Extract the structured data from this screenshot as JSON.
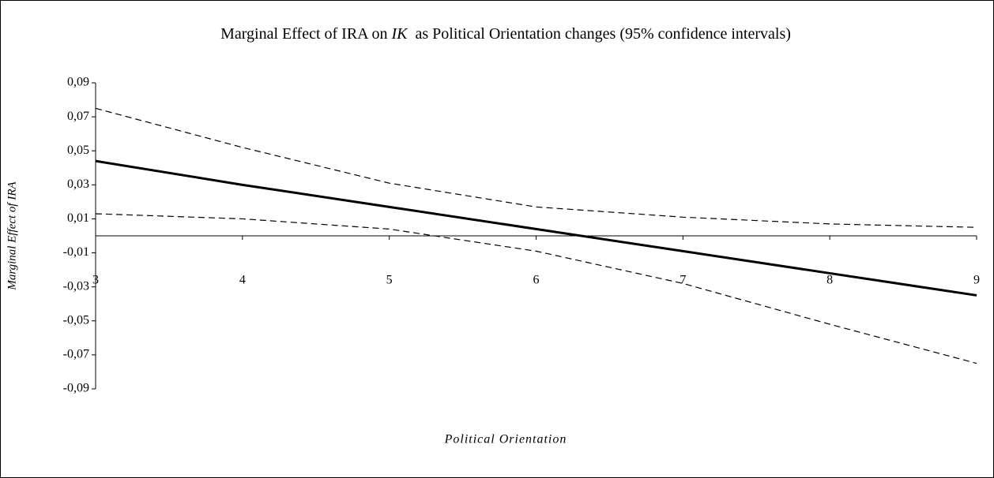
{
  "chart_data": {
    "type": "line",
    "title": [
      "Marginal Effect of IRA on ",
      "IK",
      "  as Political Orientation changes (95% confidence intervals)"
    ],
    "x_label": "Political Orientation",
    "y_label": "Marginal Effect of IRA",
    "x": [
      3,
      4,
      5,
      6,
      7,
      8,
      9
    ],
    "series": [
      {
        "color": "#000000",
        "style": "solid",
        "values": [
          0.044,
          0.03,
          0.017,
          0.004,
          -0.009,
          -0.022,
          -0.035
        ]
      },
      {
        "color": "#000000",
        "style": "dashed",
        "values": [
          0.075,
          0.052,
          0.031,
          0.017,
          0.011,
          0.007,
          0.005
        ]
      },
      {
        "color": "#000000",
        "style": "dashed",
        "values": [
          0.013,
          0.01,
          0.004,
          -0.009,
          -0.028,
          -0.052,
          -0.075
        ]
      }
    ],
    "xlim": [
      3,
      9
    ],
    "xticks": [
      3,
      4,
      5,
      6,
      7,
      8,
      9
    ],
    "ylim": [
      -0.09,
      0.09
    ],
    "yticks": [
      {
        "value": -0.09,
        "label": "-0,09"
      },
      {
        "value": -0.07,
        "label": "-0,07"
      },
      {
        "value": -0.05,
        "label": "-0,05"
      },
      {
        "value": -0.03,
        "label": "-0,03"
      },
      {
        "value": -0.01,
        "label": "-0,01"
      },
      {
        "value": 0.01,
        "label": "0,01"
      },
      {
        "value": 0.03,
        "label": "0,03"
      },
      {
        "value": 0.05,
        "label": "0,05"
      },
      {
        "value": 0.07,
        "label": "0,07"
      },
      {
        "value": 0.09,
        "label": "0,09"
      }
    ],
    "grid": false
  }
}
